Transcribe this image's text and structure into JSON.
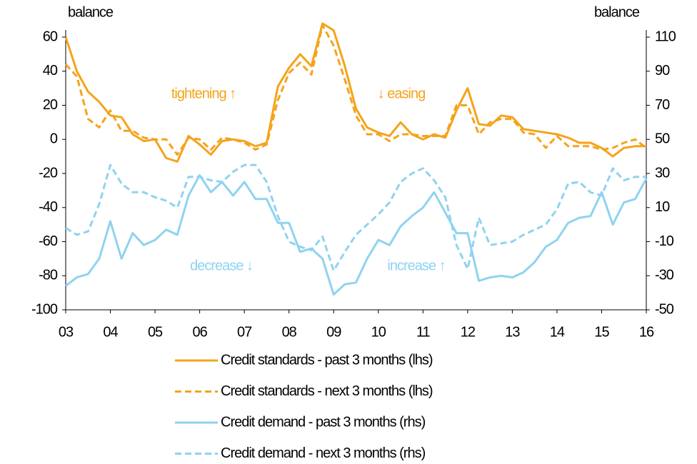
{
  "chart_data": {
    "type": "line",
    "categories": [
      "03",
      null,
      null,
      null,
      "04",
      null,
      null,
      null,
      "05",
      null,
      null,
      null,
      "06",
      null,
      null,
      null,
      "07",
      null,
      null,
      null,
      "08",
      null,
      null,
      null,
      "09",
      null,
      null,
      null,
      "10",
      null,
      null,
      null,
      "11",
      null,
      null,
      null,
      "12",
      null,
      null,
      null,
      "13",
      null,
      null,
      null,
      "14",
      null,
      null,
      null,
      "15",
      null,
      null,
      null,
      "16"
    ],
    "y_label": "balance",
    "y2_label": "balance",
    "ylim": [
      -100,
      60
    ],
    "yticks": [
      -100,
      -80,
      -60,
      -40,
      -20,
      0,
      20,
      40,
      60
    ],
    "y2lim": [
      -50,
      110
    ],
    "y2ticks": [
      -50,
      -30,
      -10,
      10,
      30,
      50,
      70,
      90,
      110
    ],
    "grid": false,
    "annotations": [
      {
        "text": "tightening ↑",
        "color": "#f5a31a"
      },
      {
        "text": "↓ easing",
        "color": "#f5a31a"
      },
      {
        "text": "decrease ↓",
        "color": "#8fd3f0"
      },
      {
        "text": "increase ↑",
        "color": "#8fd3f0"
      }
    ],
    "series": [
      {
        "name": "Credit standards - past 3 months (lhs)",
        "color": "#f5a31a",
        "line_style": "solid",
        "values": [
          60,
          40,
          28,
          22,
          14,
          13,
          3,
          -1,
          0,
          -11,
          -13,
          2,
          -3,
          -9,
          -1,
          0,
          -1,
          -4,
          -2,
          31,
          42,
          50,
          43,
          68,
          64,
          43,
          18,
          7,
          4,
          2,
          10,
          3,
          0,
          3,
          1,
          17,
          30,
          9,
          8,
          14,
          13,
          6,
          5,
          4,
          3,
          1,
          -2,
          -2,
          -5,
          -10,
          -5,
          -4,
          -4
        ]
      },
      {
        "name": "Credit standards - next 3 months (lhs)",
        "color": "#f5a31a",
        "line_style": "dashed",
        "values": [
          44,
          37,
          12,
          7,
          17,
          5,
          5,
          1,
          0,
          0,
          -9,
          1,
          0,
          -6,
          1,
          0,
          -2,
          -6,
          -3,
          23,
          39,
          45,
          38,
          67,
          55,
          35,
          14,
          3,
          3,
          -1,
          3,
          3,
          2,
          2,
          2,
          20,
          20,
          3,
          10,
          12,
          12,
          4,
          3,
          -5,
          2,
          -4,
          -4,
          -4,
          -6,
          -5,
          -2,
          0,
          -5
        ]
      },
      {
        "name": "Credit demand - past 3 months (rhs)",
        "color": "#8fd3f0",
        "line_style": "solid",
        "axis": "y2",
        "values": [
          -36,
          -31,
          -29,
          -20,
          2,
          -20,
          -5,
          -12,
          -9,
          -3,
          -6,
          17,
          29,
          19,
          25,
          17,
          25,
          15,
          15,
          1,
          1,
          -16,
          -14,
          -20,
          -41,
          -35,
          -34,
          -20,
          -9,
          -12,
          -1,
          5,
          10,
          19,
          7,
          -5,
          -5,
          -33,
          -31,
          -30,
          -31,
          -28,
          -22,
          -13,
          -9,
          1,
          4,
          5,
          19,
          0,
          13,
          15,
          27
        ]
      },
      {
        "name": "Credit demand - next 3 months (rhs)",
        "color": "#8fd3f0",
        "line_style": "dashed",
        "axis": "y2",
        "values": [
          -2,
          -6,
          -4,
          12,
          35,
          24,
          19,
          19,
          16,
          14,
          10,
          28,
          28,
          26,
          25,
          31,
          35,
          35,
          25,
          5,
          -10,
          -13,
          -15,
          -7,
          -27,
          -16,
          -6,
          0,
          6,
          13,
          25,
          30,
          33,
          26,
          16,
          -12,
          -26,
          4,
          -12,
          -11,
          -10,
          -6,
          -3,
          0,
          9,
          24,
          25,
          19,
          17,
          33,
          26,
          28,
          28
        ]
      }
    ]
  }
}
